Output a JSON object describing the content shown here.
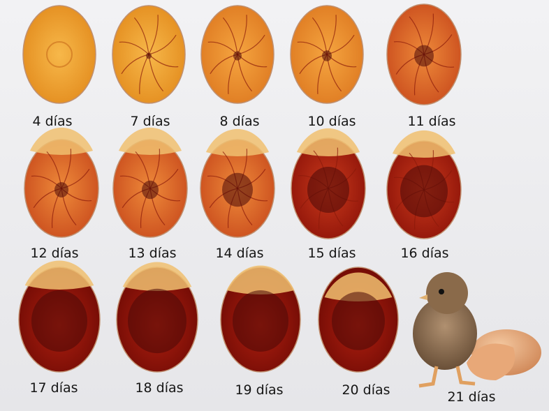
{
  "labels": [
    "4 días",
    "7 días",
    "8 días",
    "10 días",
    "11 días",
    "12 días",
    "13 días",
    "14 días",
    "15 días",
    "16 días",
    "17 días",
    "18 días",
    "19 días",
    "20 días",
    "21 días"
  ]
}
